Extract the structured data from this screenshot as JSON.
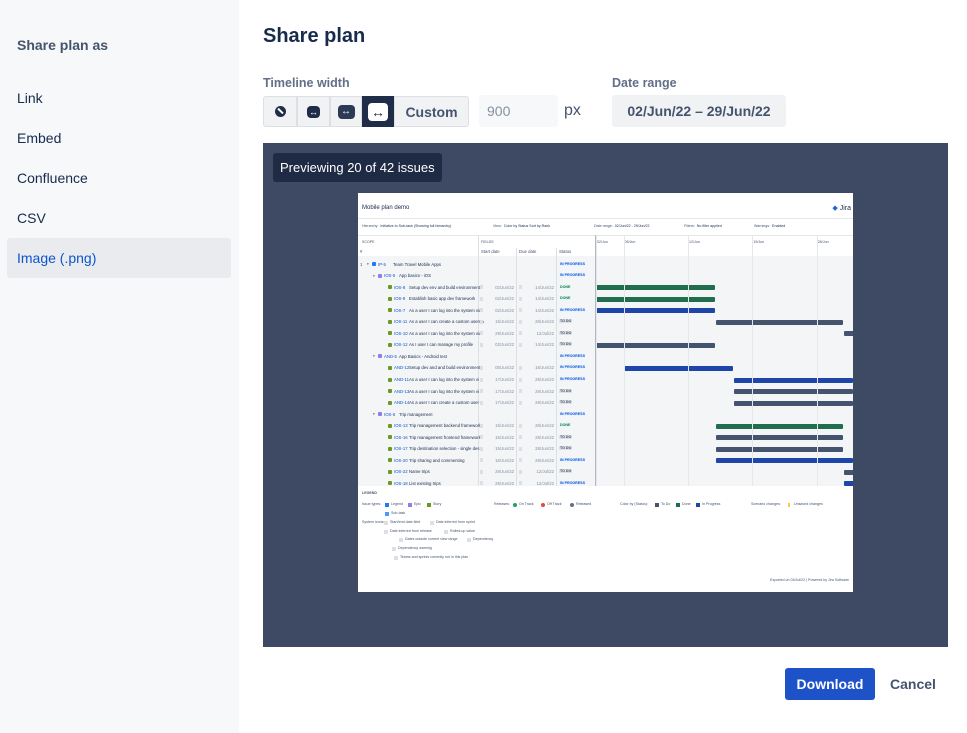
{
  "sidebar": {
    "title": "Share plan as",
    "items": [
      {
        "label": "Link",
        "active": false
      },
      {
        "label": "Embed",
        "active": false
      },
      {
        "label": "Confluence",
        "active": false
      },
      {
        "label": "CSV",
        "active": false
      },
      {
        "label": "Image (.png)",
        "active": true
      }
    ]
  },
  "main": {
    "title": "Share plan",
    "timeline_width": {
      "label": "Timeline width",
      "options": [
        "compact-icon",
        "narrow-icon",
        "medium-icon",
        "wide-icon"
      ],
      "selected_option": "wide-icon",
      "custom_label": "Custom",
      "custom_value": "900",
      "unit": "px"
    },
    "date_range": {
      "label": "Date range",
      "value": "02/Jun/22 – 29/Jun/22"
    },
    "preview_badge": "Previewing 20 of 42 issues",
    "download_label": "Download",
    "cancel_label": "Cancel"
  },
  "preview": {
    "plan_title": "Mobile plan demo",
    "logo": "Jira",
    "info": [
      {
        "label": "Hierarchy:",
        "value": "Initiative to Sub-task (Showing full hierarchy)"
      },
      {
        "label": "View:",
        "value": "Color by Status  Sort by Rank"
      },
      {
        "label": "Date range:",
        "value": "02/Jun/22 - 29/Jun/22"
      },
      {
        "label": "Filters:",
        "value": "No filter applied"
      },
      {
        "label": "Warnings:",
        "value": "Enabled"
      }
    ],
    "headers": {
      "scope": "SCOPE",
      "fields": "FIELDS",
      "num": "#",
      "start": "Start date",
      "due": "Due date",
      "status": "Status"
    },
    "timeline_ticks": [
      "02/Jun",
      "05/Jun",
      "12/Jun",
      "19/Jun",
      "26/Jun"
    ],
    "colors": {
      "done": "#216e4e",
      "in_progress": "#1d46a8",
      "todo": "#44546f"
    },
    "rows": [
      {
        "num": "1",
        "key": "IP-5",
        "summary": "Team Travel Mobile Apps",
        "level": 0,
        "type": "legend",
        "start": "",
        "due": "",
        "status": "IN PROGRESS"
      },
      {
        "num": "",
        "key": "IOS-5",
        "summary": "App basics - iOS",
        "level": 1,
        "type": "epic",
        "start": "",
        "due": "",
        "status": "IN PROGRESS"
      },
      {
        "num": "",
        "key": "IOS-8",
        "summary": "Setup dev env and build environment",
        "level": 2,
        "type": "story",
        "start": "02/Jun/22",
        "due": "14/Jun/22",
        "status": "DONE"
      },
      {
        "num": "",
        "key": "IOS-9",
        "summary": "Establish basic app dev framework",
        "level": 2,
        "type": "story",
        "start": "02/Jun/22",
        "due": "14/Jun/22",
        "status": "DONE"
      },
      {
        "num": "",
        "key": "IOS-7",
        "summary": "As a user I can log into the system via",
        "level": 2,
        "type": "story",
        "start": "02/Jun/22",
        "due": "14/Jun/22",
        "status": "IN PROGRESS"
      },
      {
        "num": "",
        "key": "IOS-11",
        "summary": "As a user I can create a custom userna",
        "level": 2,
        "type": "story",
        "start": "15/Jun/22",
        "due": "28/Jun/22",
        "status": "TO DO"
      },
      {
        "num": "",
        "key": "IOS-10",
        "summary": "As a user I can log into the system via",
        "level": 2,
        "type": "story",
        "start": "29/Jun/22",
        "due": "12/Jul/22",
        "status": "TO DO"
      },
      {
        "num": "",
        "key": "IOS-12",
        "summary": "As I user I can manage my profile",
        "level": 2,
        "type": "story",
        "start": "02/Jun/22",
        "due": "14/Jun/22",
        "status": "TO DO"
      },
      {
        "num": "",
        "key": "AND-5",
        "summary": "App Basics - Android test",
        "level": 1,
        "type": "epic",
        "start": "",
        "due": "",
        "status": "IN PROGRESS"
      },
      {
        "num": "",
        "key": "AND-12",
        "summary": "Setup dev and and build environment",
        "level": 2,
        "type": "story",
        "start": "05/Jun/22",
        "due": "16/Jun/22",
        "status": "IN PROGRESS"
      },
      {
        "num": "",
        "key": "AND-11",
        "summary": "As a user I can log into the system vi",
        "level": 2,
        "type": "story",
        "start": "17/Jun/22",
        "due": "29/Jun/22",
        "status": "IN PROGRESS"
      },
      {
        "num": "",
        "key": "AND-13",
        "summary": "As a user I can log into the system vi",
        "level": 2,
        "type": "story",
        "start": "17/Jun/22",
        "due": "29/Jun/22",
        "status": "TO DO"
      },
      {
        "num": "",
        "key": "AND-14",
        "summary": "As a user I can create a custom user",
        "level": 2,
        "type": "story",
        "start": "17/Jun/22",
        "due": "29/Jun/22",
        "status": "TO DO"
      },
      {
        "num": "",
        "key": "IOS-6",
        "summary": "Trip management",
        "level": 1,
        "type": "epic",
        "start": "",
        "due": "",
        "status": "IN PROGRESS"
      },
      {
        "num": "",
        "key": "IOS-13",
        "summary": "Trip management backend framework",
        "level": 2,
        "type": "story",
        "start": "15/Jun/22",
        "due": "28/Jun/22",
        "status": "DONE"
      },
      {
        "num": "",
        "key": "IOS-16",
        "summary": "Trip management frontend framework",
        "level": 2,
        "type": "story",
        "start": "15/Jun/22",
        "due": "28/Jun/22",
        "status": "TO DO"
      },
      {
        "num": "",
        "key": "IOS-17",
        "summary": "Trip destination selection - single des",
        "level": 2,
        "type": "story",
        "start": "15/Jun/22",
        "due": "28/Jun/22",
        "status": "TO DO"
      },
      {
        "num": "",
        "key": "IOS-20",
        "summary": "Trip sharing and commenting",
        "level": 2,
        "type": "story",
        "start": "15/Jun/22",
        "due": "29/Jun/22",
        "status": "IN PROGRESS"
      },
      {
        "num": "",
        "key": "IOS-22",
        "summary": "Name trips",
        "level": 2,
        "type": "story",
        "start": "29/Jun/22",
        "due": "12/Jul/22",
        "status": "TO DO"
      },
      {
        "num": "",
        "key": "IOS-18",
        "summary": "List existing trips",
        "level": 2,
        "type": "story",
        "start": "29/Jun/22",
        "due": "12/Jul/22",
        "status": "IN PROGRESS"
      }
    ],
    "legend": {
      "title": "LEGEND",
      "issue_types_label": "Issue types:",
      "issue_types": [
        "Legend",
        "Epic",
        "Story",
        "Sub-task"
      ],
      "releases_label": "Releases:",
      "releases": [
        "On Track",
        "Off Track",
        "Released"
      ],
      "color_by_label": "Color by (Status):",
      "color_by": [
        "To Do",
        "Done",
        "In Progress"
      ],
      "scenario_label": "Scenario changes:",
      "scenario": "Unsaved changes",
      "system_icons_label": "System icons:",
      "system_icons": [
        "Start/end date field",
        "Date inferred from sprint",
        "Date inferred from release",
        "Rolled-up value",
        "Dates outside current view range",
        "Dependency",
        "Dependency warning",
        "Teams and sprints currently not in this plan"
      ]
    },
    "footer": "Exported on 03/Jul/22 | Powered by Jira Software"
  }
}
